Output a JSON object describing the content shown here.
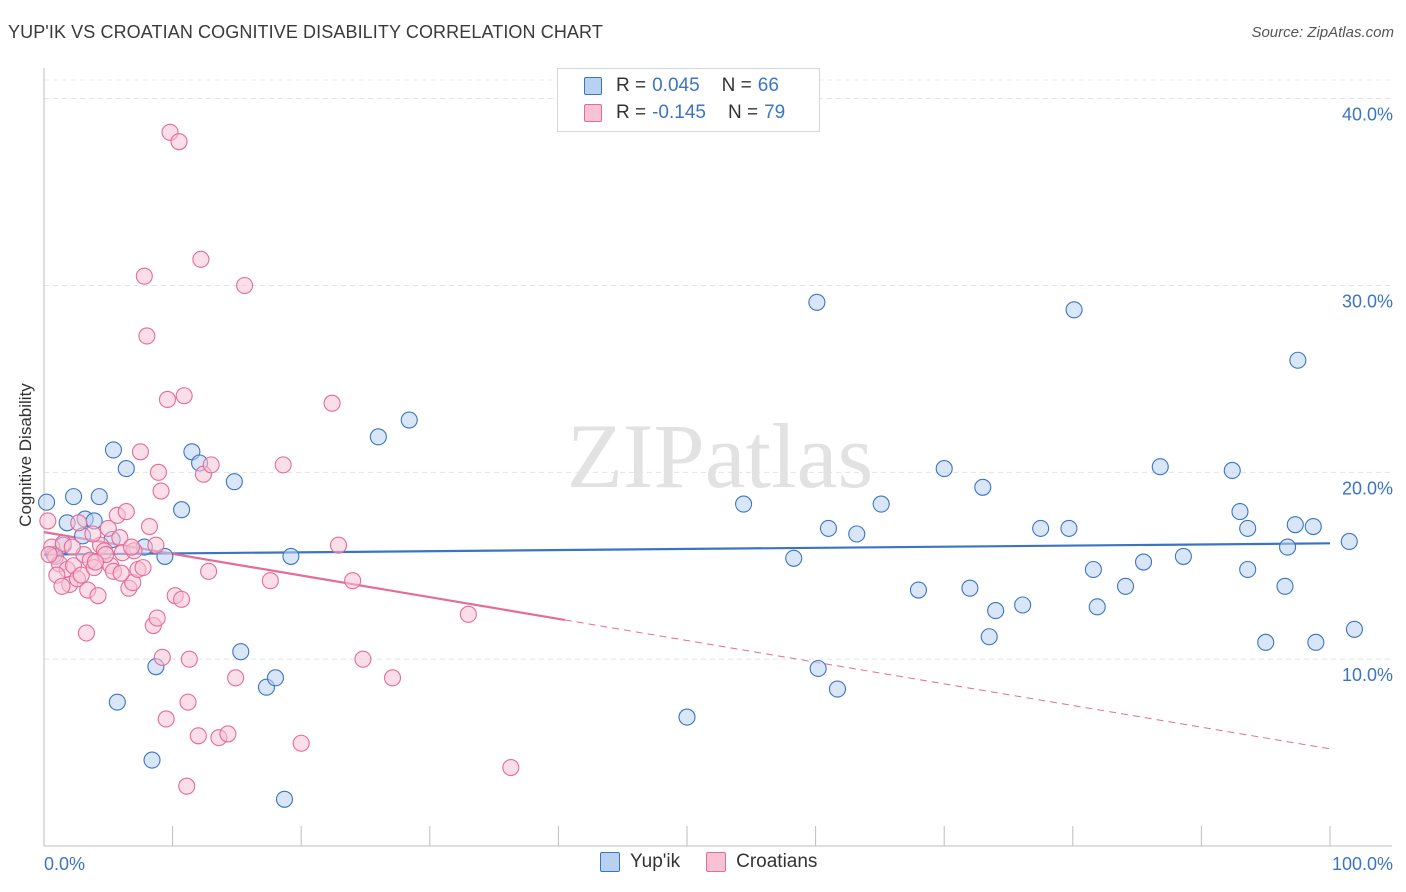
{
  "title": "YUP'IK VS CROATIAN COGNITIVE DISABILITY CORRELATION CHART",
  "source": "Source: ZipAtlas.com",
  "watermark": "ZIPatlas",
  "colors": {
    "blue": "#3a75c4",
    "blue_fill": "#b9d1f1",
    "pink": "#e56b98",
    "pink_fill": "#f7c3d3"
  },
  "legend": {
    "rows": [
      {
        "r_label": "R =",
        "r_value": "0.045",
        "n_label": "N =",
        "n_value": "66"
      },
      {
        "r_label": "R =",
        "r_value": "-0.145",
        "n_label": "N =",
        "n_value": "79"
      }
    ]
  },
  "bottom_legend": [
    "Yup'ik",
    "Croatians"
  ],
  "chart_data": {
    "type": "scatter",
    "ylabel": "Cognitive Disability",
    "x_tick_labels": [
      "0.0%",
      "100.0%"
    ],
    "y_tick_labels": [
      "10.0%",
      "20.0%",
      "30.0%",
      "40.0%"
    ],
    "y_ticks": [
      10,
      20,
      30,
      40
    ],
    "xlim": [
      0,
      100
    ],
    "ylim": [
      0,
      41
    ],
    "grid": true,
    "legend_position": "top-center",
    "series": [
      {
        "name": "Yup'ik",
        "color": "#3a75c4",
        "trend": {
          "x": [
            0,
            100
          ],
          "y": [
            15.6,
            16.2
          ]
        },
        "points": [
          [
            0.2,
            18.4
          ],
          [
            1.5,
            16.1
          ],
          [
            1.8,
            17.3
          ],
          [
            2.3,
            18.7
          ],
          [
            0.8,
            15.6
          ],
          [
            3.0,
            16.6
          ],
          [
            3.2,
            17.5
          ],
          [
            3.9,
            17.4
          ],
          [
            4.3,
            18.7
          ],
          [
            5.3,
            16.4
          ],
          [
            5.4,
            21.2
          ],
          [
            6.4,
            20.2
          ],
          [
            7.8,
            16.0
          ],
          [
            8.7,
            9.6
          ],
          [
            9.4,
            15.5
          ],
          [
            10.7,
            18.0
          ],
          [
            11.5,
            21.1
          ],
          [
            12.1,
            20.5
          ],
          [
            14.8,
            19.5
          ],
          [
            15.3,
            10.4
          ],
          [
            17.3,
            8.5
          ],
          [
            18.0,
            9.0
          ],
          [
            18.7,
            2.5
          ],
          [
            19.2,
            15.5
          ],
          [
            26.0,
            21.9
          ],
          [
            28.4,
            22.8
          ],
          [
            5.7,
            7.7
          ],
          [
            8.4,
            4.6
          ],
          [
            50.0,
            6.9
          ],
          [
            54.4,
            18.3
          ],
          [
            58.3,
            15.4
          ],
          [
            60.1,
            29.1
          ],
          [
            60.2,
            9.5
          ],
          [
            61.0,
            17.0
          ],
          [
            61.7,
            8.4
          ],
          [
            63.2,
            16.7
          ],
          [
            65.1,
            18.3
          ],
          [
            68.0,
            13.7
          ],
          [
            70.0,
            20.2
          ],
          [
            72.0,
            13.8
          ],
          [
            73.0,
            19.2
          ],
          [
            73.5,
            11.2
          ],
          [
            74.0,
            12.6
          ],
          [
            76.1,
            12.9
          ],
          [
            77.5,
            17.0
          ],
          [
            79.7,
            17.0
          ],
          [
            80.1,
            28.7
          ],
          [
            81.6,
            14.8
          ],
          [
            81.9,
            12.8
          ],
          [
            84.1,
            13.9
          ],
          [
            85.5,
            15.2
          ],
          [
            86.8,
            20.3
          ],
          [
            88.6,
            15.5
          ],
          [
            92.4,
            20.1
          ],
          [
            93.0,
            17.9
          ],
          [
            93.6,
            14.8
          ],
          [
            93.6,
            17.0
          ],
          [
            95.0,
            10.9
          ],
          [
            96.5,
            13.9
          ],
          [
            96.7,
            16.0
          ],
          [
            97.3,
            17.2
          ],
          [
            97.5,
            26.0
          ],
          [
            98.7,
            17.1
          ],
          [
            98.9,
            10.9
          ],
          [
            101.5,
            16.3
          ],
          [
            101.9,
            11.6
          ]
        ]
      },
      {
        "name": "Croatians",
        "color": "#e56b98",
        "trend_solid": {
          "x": [
            0,
            40.5
          ],
          "y": [
            16.8,
            12.1
          ]
        },
        "trend_dashed": {
          "x": [
            40.5,
            100
          ],
          "y": [
            12.1,
            5.2
          ]
        },
        "points": [
          [
            0.3,
            17.4
          ],
          [
            0.6,
            16.0
          ],
          [
            0.9,
            15.5
          ],
          [
            1.2,
            15.1
          ],
          [
            1.5,
            16.2
          ],
          [
            1.8,
            14.8
          ],
          [
            2.0,
            14.0
          ],
          [
            2.3,
            15.0
          ],
          [
            2.6,
            14.3
          ],
          [
            2.9,
            14.5
          ],
          [
            3.1,
            15.6
          ],
          [
            3.4,
            13.7
          ],
          [
            3.6,
            15.3
          ],
          [
            3.9,
            14.9
          ],
          [
            4.2,
            13.4
          ],
          [
            4.4,
            16.1
          ],
          [
            4.7,
            15.8
          ],
          [
            5.0,
            17.0
          ],
          [
            5.2,
            15.0
          ],
          [
            5.4,
            14.7
          ],
          [
            5.7,
            17.7
          ],
          [
            5.9,
            16.5
          ],
          [
            6.1,
            15.7
          ],
          [
            6.4,
            17.9
          ],
          [
            6.6,
            13.8
          ],
          [
            6.9,
            14.1
          ],
          [
            7.0,
            15.8
          ],
          [
            7.3,
            14.8
          ],
          [
            7.5,
            21.1
          ],
          [
            7.8,
            30.5
          ],
          [
            8.0,
            27.3
          ],
          [
            8.2,
            17.1
          ],
          [
            8.5,
            11.8
          ],
          [
            8.7,
            16.1
          ],
          [
            8.9,
            20.0
          ],
          [
            9.1,
            19.0
          ],
          [
            9.2,
            10.1
          ],
          [
            9.6,
            23.9
          ],
          [
            9.8,
            38.2
          ],
          [
            10.2,
            13.4
          ],
          [
            10.5,
            37.7
          ],
          [
            10.7,
            13.2
          ],
          [
            10.9,
            24.1
          ],
          [
            11.2,
            7.7
          ],
          [
            11.3,
            10.0
          ],
          [
            12.0,
            5.9
          ],
          [
            12.2,
            31.4
          ],
          [
            12.4,
            19.9
          ],
          [
            12.8,
            14.7
          ],
          [
            13.0,
            20.4
          ],
          [
            13.6,
            5.8
          ],
          [
            14.3,
            6.0
          ],
          [
            14.9,
            9.0
          ],
          [
            15.6,
            30.0
          ],
          [
            17.6,
            14.2
          ],
          [
            18.6,
            20.4
          ],
          [
            20.0,
            5.5
          ],
          [
            22.4,
            23.7
          ],
          [
            22.9,
            16.1
          ],
          [
            24.0,
            14.2
          ],
          [
            24.8,
            10.0
          ],
          [
            27.1,
            9.0
          ],
          [
            33.0,
            12.4
          ],
          [
            36.3,
            4.2
          ],
          [
            9.5,
            6.8
          ],
          [
            11.1,
            3.2
          ],
          [
            3.3,
            11.4
          ],
          [
            0.4,
            15.6
          ],
          [
            1.0,
            14.5
          ],
          [
            2.2,
            16.0
          ],
          [
            3.8,
            16.7
          ],
          [
            4.8,
            15.6
          ],
          [
            6.0,
            14.6
          ],
          [
            6.8,
            16.0
          ],
          [
            7.7,
            14.9
          ],
          [
            8.8,
            12.2
          ],
          [
            1.4,
            13.9
          ],
          [
            2.7,
            17.3
          ],
          [
            4.0,
            15.2
          ]
        ]
      }
    ]
  }
}
